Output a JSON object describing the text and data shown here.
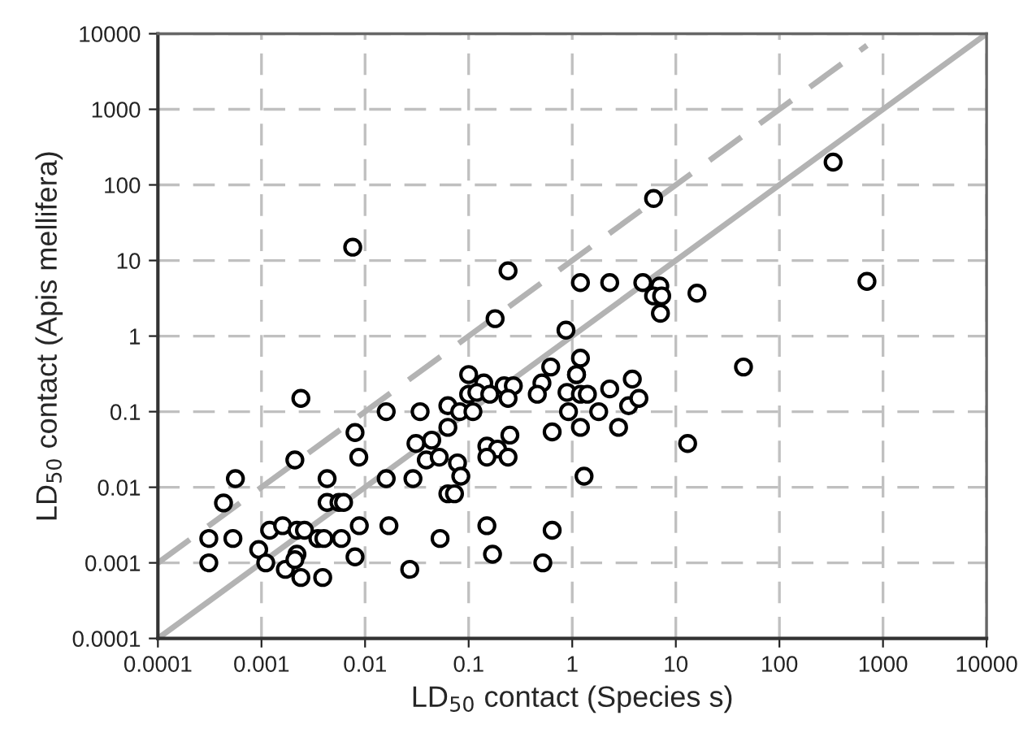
{
  "chart_data": {
    "type": "scatter",
    "xlabel": "LD$_{50}$ contact (Species s)",
    "ylabel": "LD$_{50}$ contact (Apis mellifera)",
    "log": "xy",
    "xlim": [
      0.0001,
      10000
    ],
    "ylim": [
      0.0001,
      10000
    ],
    "xticks": [
      0.0001,
      0.001,
      0.01,
      0.1,
      1,
      10,
      100,
      1000,
      10000
    ],
    "yticks": [
      0.0001,
      0.001,
      0.01,
      0.1,
      1,
      10,
      100,
      1000,
      10000
    ],
    "grid": true,
    "legend": false,
    "marker": "circle",
    "series": [
      {
        "type": "line",
        "color": "#b3b3b3",
        "line_style": "solid",
        "marker": "none",
        "x": [
          0.0001,
          10000
        ],
        "values": [
          0.0001,
          10000
        ]
      },
      {
        "type": "line",
        "color": "#b3b3b3",
        "line_style": "dashed",
        "marker": "none",
        "x": [
          0.0001,
          700
        ],
        "values": [
          0.001,
          7000
        ]
      },
      {
        "color": "#000000",
        "x": [
          0.0024,
          0.0021,
          0.00056,
          0.00043,
          0.00031,
          0.00053,
          0.00031,
          0.00094,
          0.0011,
          0.0012,
          0.0016,
          0.0022,
          0.0026,
          0.0017,
          0.0022,
          0.0021,
          0.0024,
          0.0039,
          0.0035,
          0.004,
          0.0059,
          0.008,
          0.0088,
          0.017,
          0.0043,
          0.0043,
          0.0056,
          0.0062,
          0.008,
          0.0087,
          0.016,
          0.016,
          0.027,
          0.029,
          0.034,
          0.031,
          0.039,
          0.052,
          0.044,
          0.063,
          0.063,
          0.063,
          0.053,
          0.24,
          0.18,
          1.2,
          2.3,
          4.8,
          7,
          6.1,
          7.3,
          7.1,
          16,
          0.87,
          1.2,
          1.1,
          1.1,
          0.1,
          0.14,
          0.22,
          0.27,
          0.62,
          0.51,
          0.46,
          0.89,
          1.2,
          1.4,
          0.1,
          0.12,
          0.16,
          0.24,
          0.082,
          0.11,
          0.92,
          1.8,
          2.3,
          3.8,
          3.5,
          4.4,
          2.8,
          1.2,
          0.64,
          0.25,
          0.15,
          0.19,
          0.15,
          0.24,
          0.078,
          0.084,
          0.073,
          1.3,
          13,
          0.15,
          0.64,
          0.17,
          0.52,
          6.1,
          330,
          700,
          0.0076,
          45
        ],
        "values": [
          0.15,
          0.023,
          0.013,
          0.0062,
          0.0021,
          0.0021,
          0.001,
          0.0015,
          0.001,
          0.0027,
          0.0031,
          0.0027,
          0.0027,
          0.00082,
          0.0013,
          0.0011,
          0.00064,
          0.00064,
          0.0021,
          0.0021,
          0.0021,
          0.0012,
          0.0031,
          0.0031,
          0.013,
          0.0063,
          0.0063,
          0.0063,
          0.053,
          0.025,
          0.1,
          0.013,
          0.00082,
          0.013,
          0.1,
          0.038,
          0.023,
          0.025,
          0.042,
          0.062,
          0.12,
          0.0082,
          0.0021,
          7.3,
          1.7,
          5.1,
          5.1,
          5.1,
          4.6,
          3.4,
          3.4,
          2,
          3.7,
          1.2,
          0.51,
          0.31,
          0.31,
          0.31,
          0.24,
          0.22,
          0.22,
          0.39,
          0.24,
          0.17,
          0.18,
          0.17,
          0.17,
          0.17,
          0.18,
          0.17,
          0.15,
          0.1,
          0.1,
          0.1,
          0.1,
          0.2,
          0.27,
          0.12,
          0.15,
          0.062,
          0.062,
          0.054,
          0.049,
          0.035,
          0.032,
          0.025,
          0.025,
          0.021,
          0.014,
          0.0082,
          0.014,
          0.038,
          0.0031,
          0.0027,
          0.0013,
          0.001,
          66,
          200,
          5.3,
          15,
          0.39
        ]
      }
    ]
  }
}
